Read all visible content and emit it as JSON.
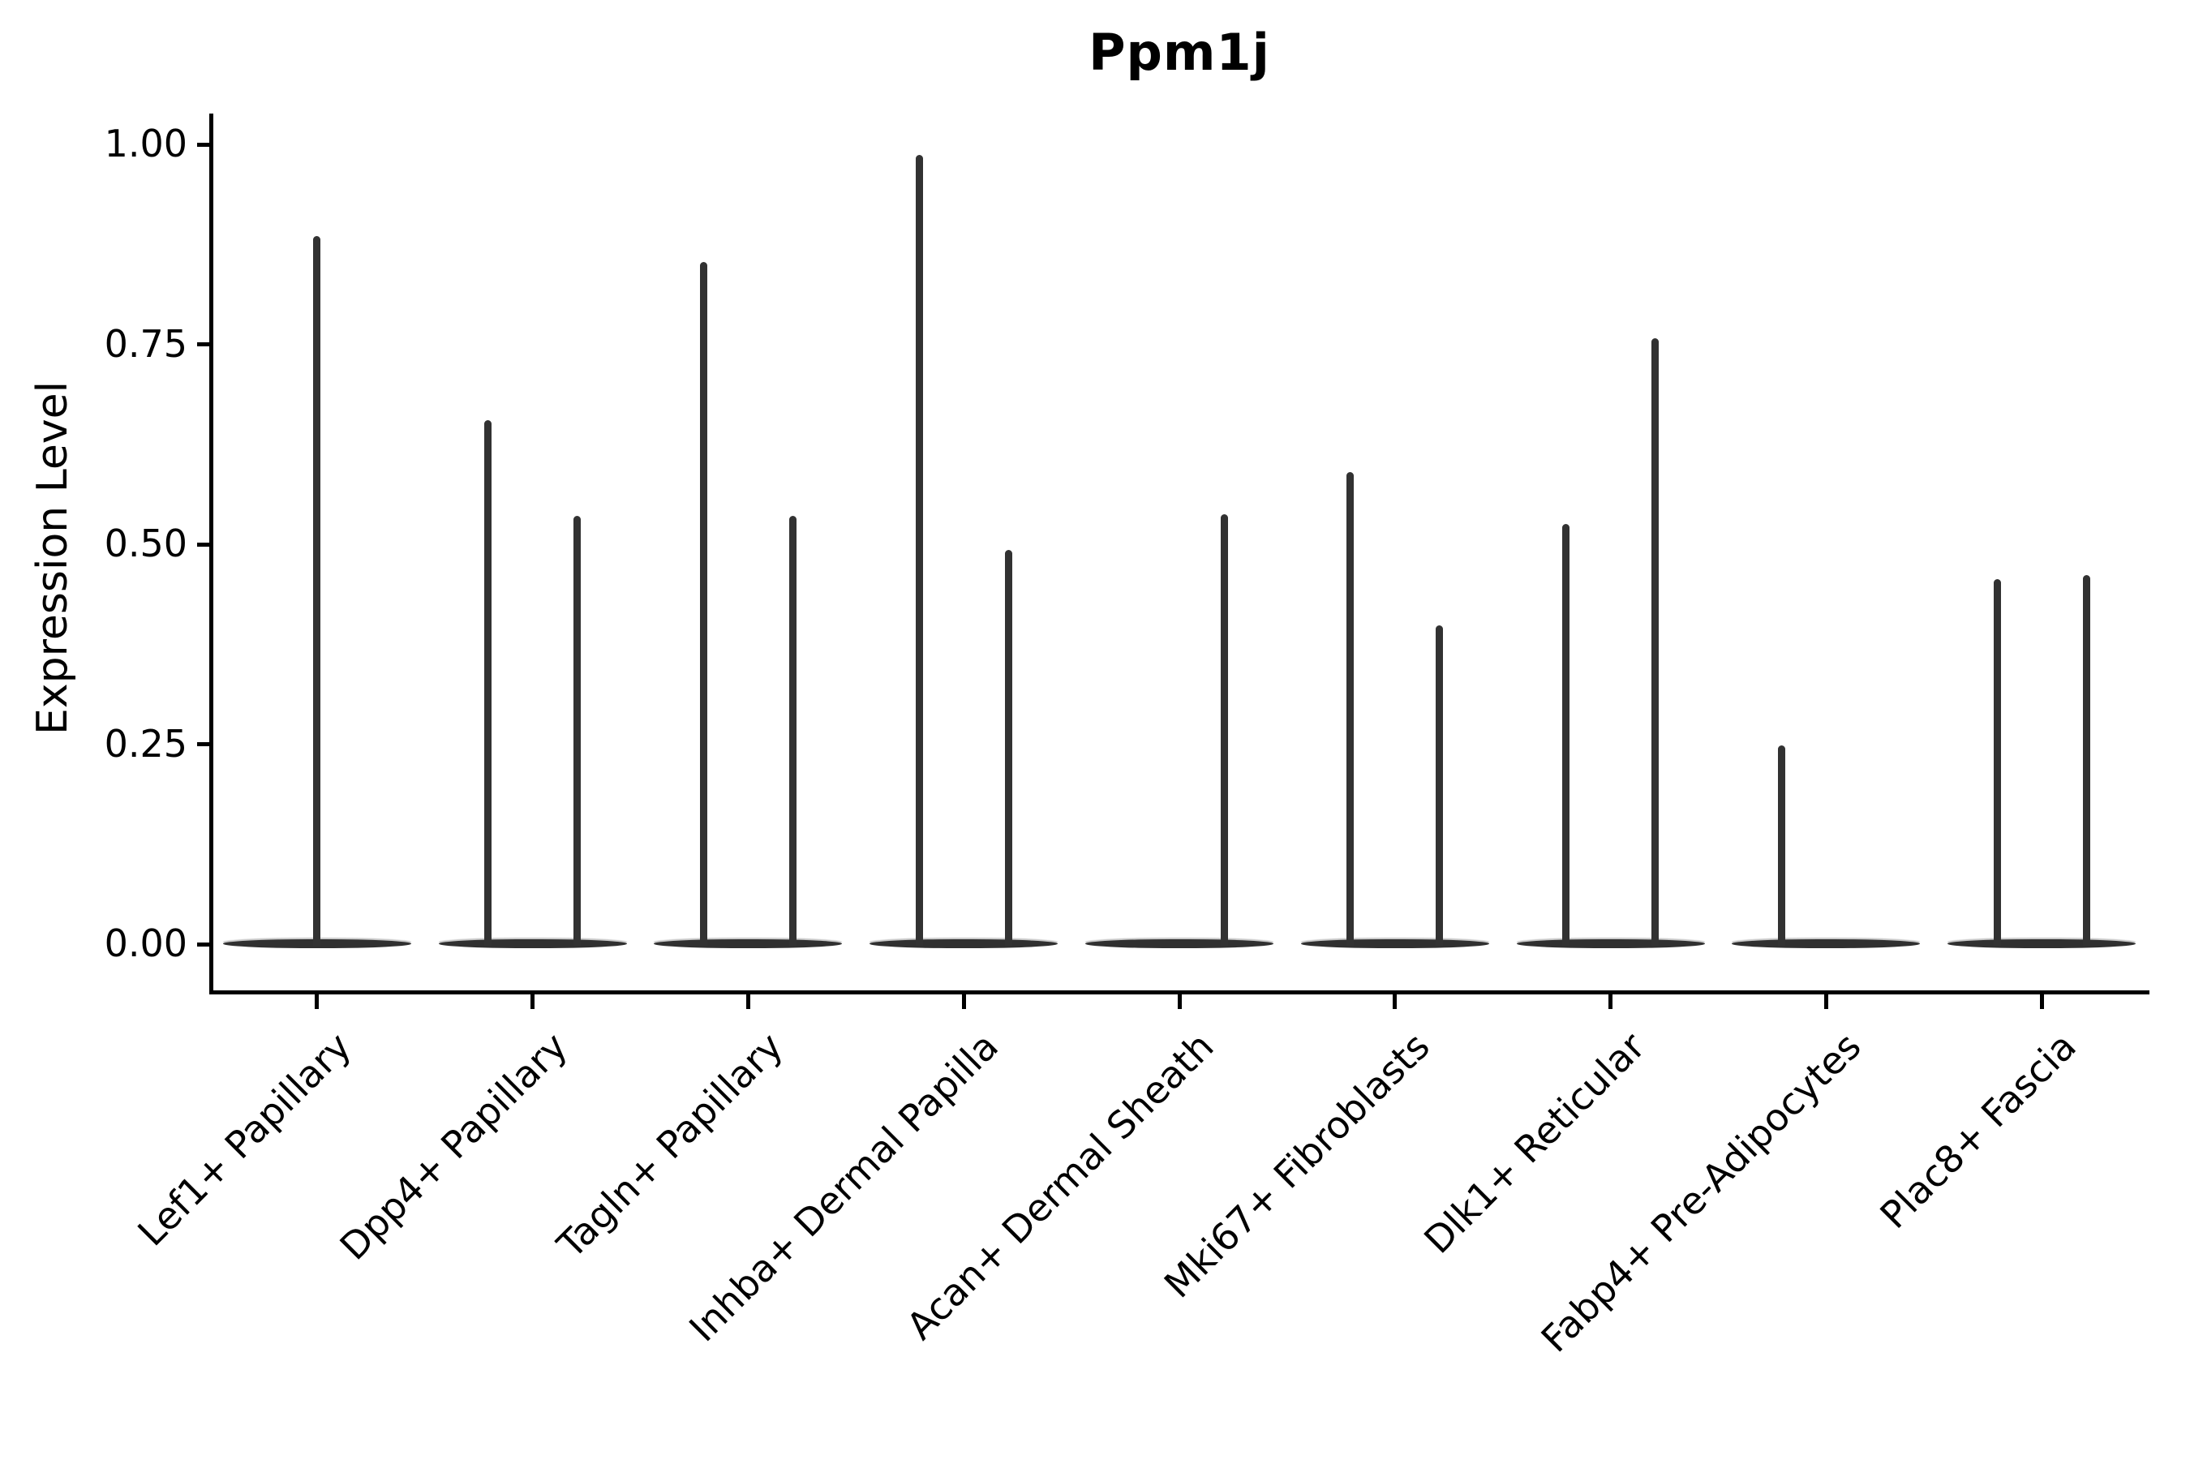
{
  "chart_data": {
    "type": "violin",
    "title": "Ppm1j",
    "ylabel": "Expression Level",
    "xlabel": "",
    "legend": "none",
    "grid": "off",
    "shape_note": "sparse single-cell expression violins: each violin collapses to a wide flat base at 0 with a thin vertical spike up to the max expression; categories hold two dodged violins (left/right) except Lef1+ Papillary which has one full-width centered violin",
    "y_axis": {
      "range_padded": [
        -0.06,
        1.04
      ],
      "ticks": [
        {
          "value": 0.0,
          "label": "0.00"
        },
        {
          "value": 0.25,
          "label": "0.25"
        },
        {
          "value": 0.5,
          "label": "0.50"
        },
        {
          "value": 0.75,
          "label": "0.75"
        },
        {
          "value": 1.0,
          "label": "1.00"
        }
      ]
    },
    "categories": [
      {
        "label": "Lef1+ Papillary",
        "violins": [
          {
            "position": "center",
            "max_expression": 0.885
          }
        ]
      },
      {
        "label": "Dpp4+ Papillary",
        "violins": [
          {
            "position": "left",
            "max_expression": 0.655
          },
          {
            "position": "right",
            "max_expression": 0.536
          }
        ]
      },
      {
        "label": "Tagln+ Papillary",
        "violins": [
          {
            "position": "left",
            "max_expression": 0.853
          },
          {
            "position": "right",
            "max_expression": 0.536
          }
        ]
      },
      {
        "label": "Inhba+ Dermal Papilla",
        "violins": [
          {
            "position": "left",
            "max_expression": 0.987
          },
          {
            "position": "right",
            "max_expression": 0.493
          }
        ]
      },
      {
        "label": "Acan+ Dermal Sheath",
        "violins": [
          {
            "position": "left",
            "max_expression": 0.0
          },
          {
            "position": "right",
            "max_expression": 0.538
          }
        ]
      },
      {
        "label": "Mki67+ Fibroblasts",
        "violins": [
          {
            "position": "left",
            "max_expression": 0.59
          },
          {
            "position": "right",
            "max_expression": 0.399
          }
        ]
      },
      {
        "label": "Dlk1+ Reticular",
        "violins": [
          {
            "position": "left",
            "max_expression": 0.525
          },
          {
            "position": "right",
            "max_expression": 0.758
          }
        ]
      },
      {
        "label": "Fabp4+ Pre-Adipocytes",
        "violins": [
          {
            "position": "left",
            "max_expression": 0.248
          },
          {
            "position": "right",
            "max_expression": 0.0
          }
        ]
      },
      {
        "label": "Plac8+ Fascia",
        "violins": [
          {
            "position": "left",
            "max_expression": 0.456
          },
          {
            "position": "right",
            "max_expression": 0.461
          }
        ]
      }
    ],
    "colors": {
      "violin": "#323232",
      "axis": "#000000",
      "text": "#000000",
      "background": "#ffffff"
    }
  }
}
